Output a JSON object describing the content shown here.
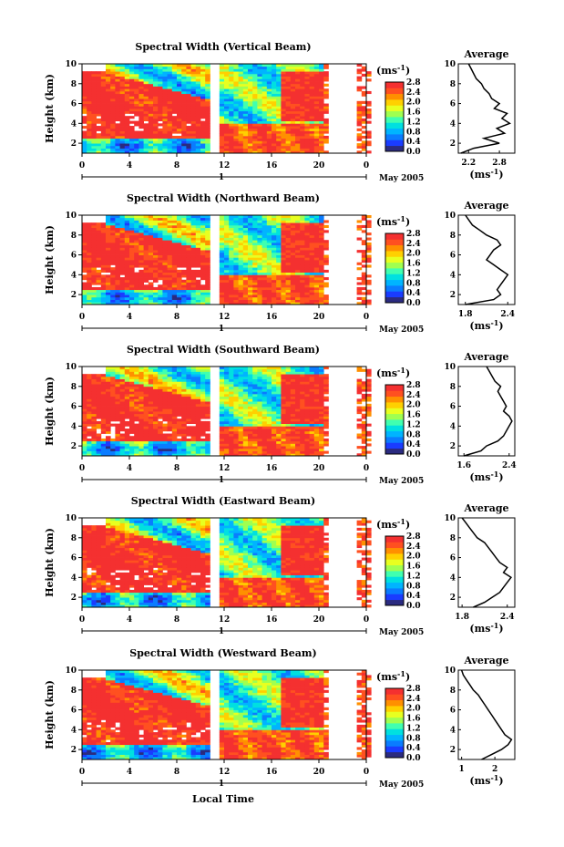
{
  "figure": {
    "xlabel": "Local Time",
    "ylabel": "Height (km)",
    "date_label": "May 2005",
    "day_label": "1",
    "unit_label": "(ms",
    "unit_exp": "-1",
    "unit_close": ")",
    "avg_title": "Average",
    "colorbar_ticks": [
      "2.8",
      "2.4",
      "2.0",
      "1.6",
      "1.2",
      "0.8",
      "0.4",
      "0.0"
    ],
    "colorbar_colors": [
      "#2b2b80",
      "#1a3cff",
      "#0a7cff",
      "#00b4ff",
      "#00e0e0",
      "#40ffb0",
      "#a0ff50",
      "#e8ff20",
      "#ffd000",
      "#ff9000",
      "#ff5020",
      "#f43030"
    ],
    "x_ticks": [
      "0",
      "4",
      "8",
      "12",
      "16",
      "20",
      "0"
    ],
    "y_ticks": [
      "10",
      "8",
      "6",
      "4",
      "2"
    ]
  },
  "chart_data": [
    {
      "type": "heatmap",
      "title": "Spectral Width (Vertical Beam)",
      "xlabel": "Local Time",
      "ylabel": "Height (km)",
      "xlim": [
        0,
        24
      ],
      "ylim": [
        1,
        10
      ],
      "colorbar": {
        "label": "(ms-1)",
        "range": [
          0.0,
          2.8
        ]
      },
      "average_profile": {
        "title": "Average",
        "xlabel": "(ms-1)",
        "x_ticks": [
          "2.2",
          "2.8"
        ],
        "xlim": [
          2.0,
          3.1
        ],
        "height": [
          1,
          1.5,
          2,
          2.5,
          3,
          3.5,
          4,
          4.5,
          5,
          5.5,
          6,
          6.5,
          7,
          7.5,
          8,
          8.5,
          9,
          9.5,
          10
        ],
        "value": [
          2.05,
          2.3,
          2.8,
          2.5,
          2.9,
          2.75,
          3.0,
          2.85,
          2.95,
          2.7,
          2.8,
          2.65,
          2.6,
          2.5,
          2.45,
          2.35,
          2.3,
          2.25,
          2.2
        ]
      }
    },
    {
      "type": "heatmap",
      "title": "Spectral Width (Northward Beam)",
      "xlabel": "Local Time",
      "ylabel": "Height (km)",
      "xlim": [
        0,
        24
      ],
      "ylim": [
        1,
        10
      ],
      "colorbar": {
        "label": "(ms-1)",
        "range": [
          0.0,
          2.8
        ]
      },
      "average_profile": {
        "title": "Average",
        "xlabel": "(ms-1)",
        "x_ticks": [
          "1.8",
          "2.4"
        ],
        "xlim": [
          1.7,
          2.5
        ],
        "height": [
          1,
          1.5,
          2,
          2.5,
          3,
          3.5,
          4,
          4.5,
          5,
          5.5,
          6,
          6.5,
          7,
          7.5,
          8,
          8.5,
          9,
          9.5,
          10
        ],
        "value": [
          1.8,
          2.2,
          2.3,
          2.25,
          2.3,
          2.35,
          2.4,
          2.3,
          2.2,
          2.1,
          2.15,
          2.2,
          2.3,
          2.25,
          2.1,
          2.0,
          1.9,
          1.85,
          1.8
        ]
      }
    },
    {
      "type": "heatmap",
      "title": "Spectral Width (Southward Beam)",
      "xlabel": "Local Time",
      "ylabel": "Height (km)",
      "xlim": [
        0,
        24
      ],
      "ylim": [
        1,
        10
      ],
      "colorbar": {
        "label": "(ms-1)",
        "range": [
          0.0,
          2.8
        ]
      },
      "average_profile": {
        "title": "Average",
        "xlabel": "(ms-1)",
        "x_ticks": [
          "1.6",
          "2.4"
        ],
        "xlim": [
          1.5,
          2.5
        ],
        "height": [
          1,
          1.5,
          2,
          2.5,
          3,
          3.5,
          4,
          4.5,
          5,
          5.5,
          6,
          6.5,
          7,
          7.5,
          8,
          8.5,
          9,
          9.5,
          10
        ],
        "value": [
          1.6,
          1.9,
          2.0,
          2.2,
          2.3,
          2.35,
          2.4,
          2.45,
          2.4,
          2.3,
          2.35,
          2.3,
          2.25,
          2.2,
          2.25,
          2.15,
          2.1,
          2.05,
          2.0
        ]
      }
    },
    {
      "type": "heatmap",
      "title": "Spectral Width (Eastward Beam)",
      "xlabel": "Local Time",
      "ylabel": "Height (km)",
      "xlim": [
        0,
        24
      ],
      "ylim": [
        1,
        10
      ],
      "colorbar": {
        "label": "(ms-1)",
        "range": [
          0.0,
          2.8
        ]
      },
      "average_profile": {
        "title": "Average",
        "xlabel": "(ms-1)",
        "x_ticks": [
          "1.8",
          "2.4"
        ],
        "xlim": [
          1.75,
          2.5
        ],
        "height": [
          1,
          1.5,
          2,
          2.5,
          3,
          3.5,
          4,
          4.5,
          5,
          5.5,
          6,
          6.5,
          7,
          7.5,
          8,
          8.5,
          9,
          9.5,
          10
        ],
        "value": [
          1.95,
          2.1,
          2.2,
          2.3,
          2.35,
          2.4,
          2.45,
          2.35,
          2.4,
          2.3,
          2.25,
          2.2,
          2.15,
          2.1,
          2.0,
          1.95,
          1.9,
          1.85,
          1.8
        ]
      }
    },
    {
      "type": "heatmap",
      "title": "Spectral Width (Westward Beam)",
      "xlabel": "Local Time",
      "ylabel": "Height (km)",
      "xlim": [
        0,
        24
      ],
      "ylim": [
        1,
        10
      ],
      "colorbar": {
        "label": "(ms-1)",
        "range": [
          0.0,
          2.8
        ]
      },
      "average_profile": {
        "title": "Average",
        "xlabel": "(ms-1)",
        "x_ticks": [
          "1",
          "2"
        ],
        "xlim": [
          0.9,
          2.6
        ],
        "height": [
          1,
          1.5,
          2,
          2.5,
          3,
          3.5,
          4,
          4.5,
          5,
          5.5,
          6,
          6.5,
          7,
          7.5,
          8,
          8.5,
          9,
          9.5,
          10
        ],
        "value": [
          1.6,
          1.9,
          2.2,
          2.4,
          2.5,
          2.3,
          2.2,
          2.1,
          2.0,
          1.9,
          1.8,
          1.7,
          1.6,
          1.5,
          1.35,
          1.25,
          1.15,
          1.05,
          1.0
        ]
      }
    }
  ]
}
